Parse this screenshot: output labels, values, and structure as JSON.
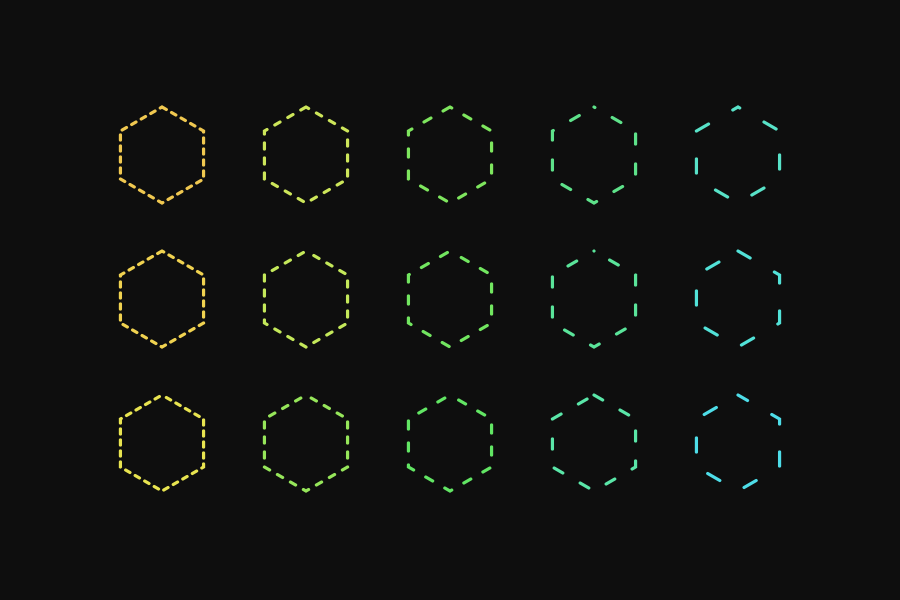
{
  "background_color": "#0e0e0e",
  "hexagon_grid": {
    "rows": [
      {
        "hexagons": [
          {
            "color": "#f0c850",
            "dash_style": "dense"
          },
          {
            "color": "#cde65a",
            "dash_style": "medium-dense"
          },
          {
            "color": "#7ee65e",
            "dash_style": "medium"
          },
          {
            "color": "#5ee28a",
            "dash_style": "sparse"
          },
          {
            "color": "#58e2c8",
            "dash_style": "very-sparse"
          }
        ]
      },
      {
        "hexagons": [
          {
            "color": "#f0d250",
            "dash_style": "dense"
          },
          {
            "color": "#c4e85a",
            "dash_style": "medium-dense"
          },
          {
            "color": "#72e660",
            "dash_style": "medium"
          },
          {
            "color": "#5ae49a",
            "dash_style": "sparse"
          },
          {
            "color": "#52e2d8",
            "dash_style": "very-sparse"
          }
        ]
      },
      {
        "hexagons": [
          {
            "color": "#e8e450",
            "dash_style": "dense"
          },
          {
            "color": "#96e65a",
            "dash_style": "medium-dense"
          },
          {
            "color": "#62e664",
            "dash_style": "medium"
          },
          {
            "color": "#5ae6a8",
            "dash_style": "sparse"
          },
          {
            "color": "#4edde8",
            "dash_style": "very-sparse"
          }
        ]
      }
    ]
  }
}
